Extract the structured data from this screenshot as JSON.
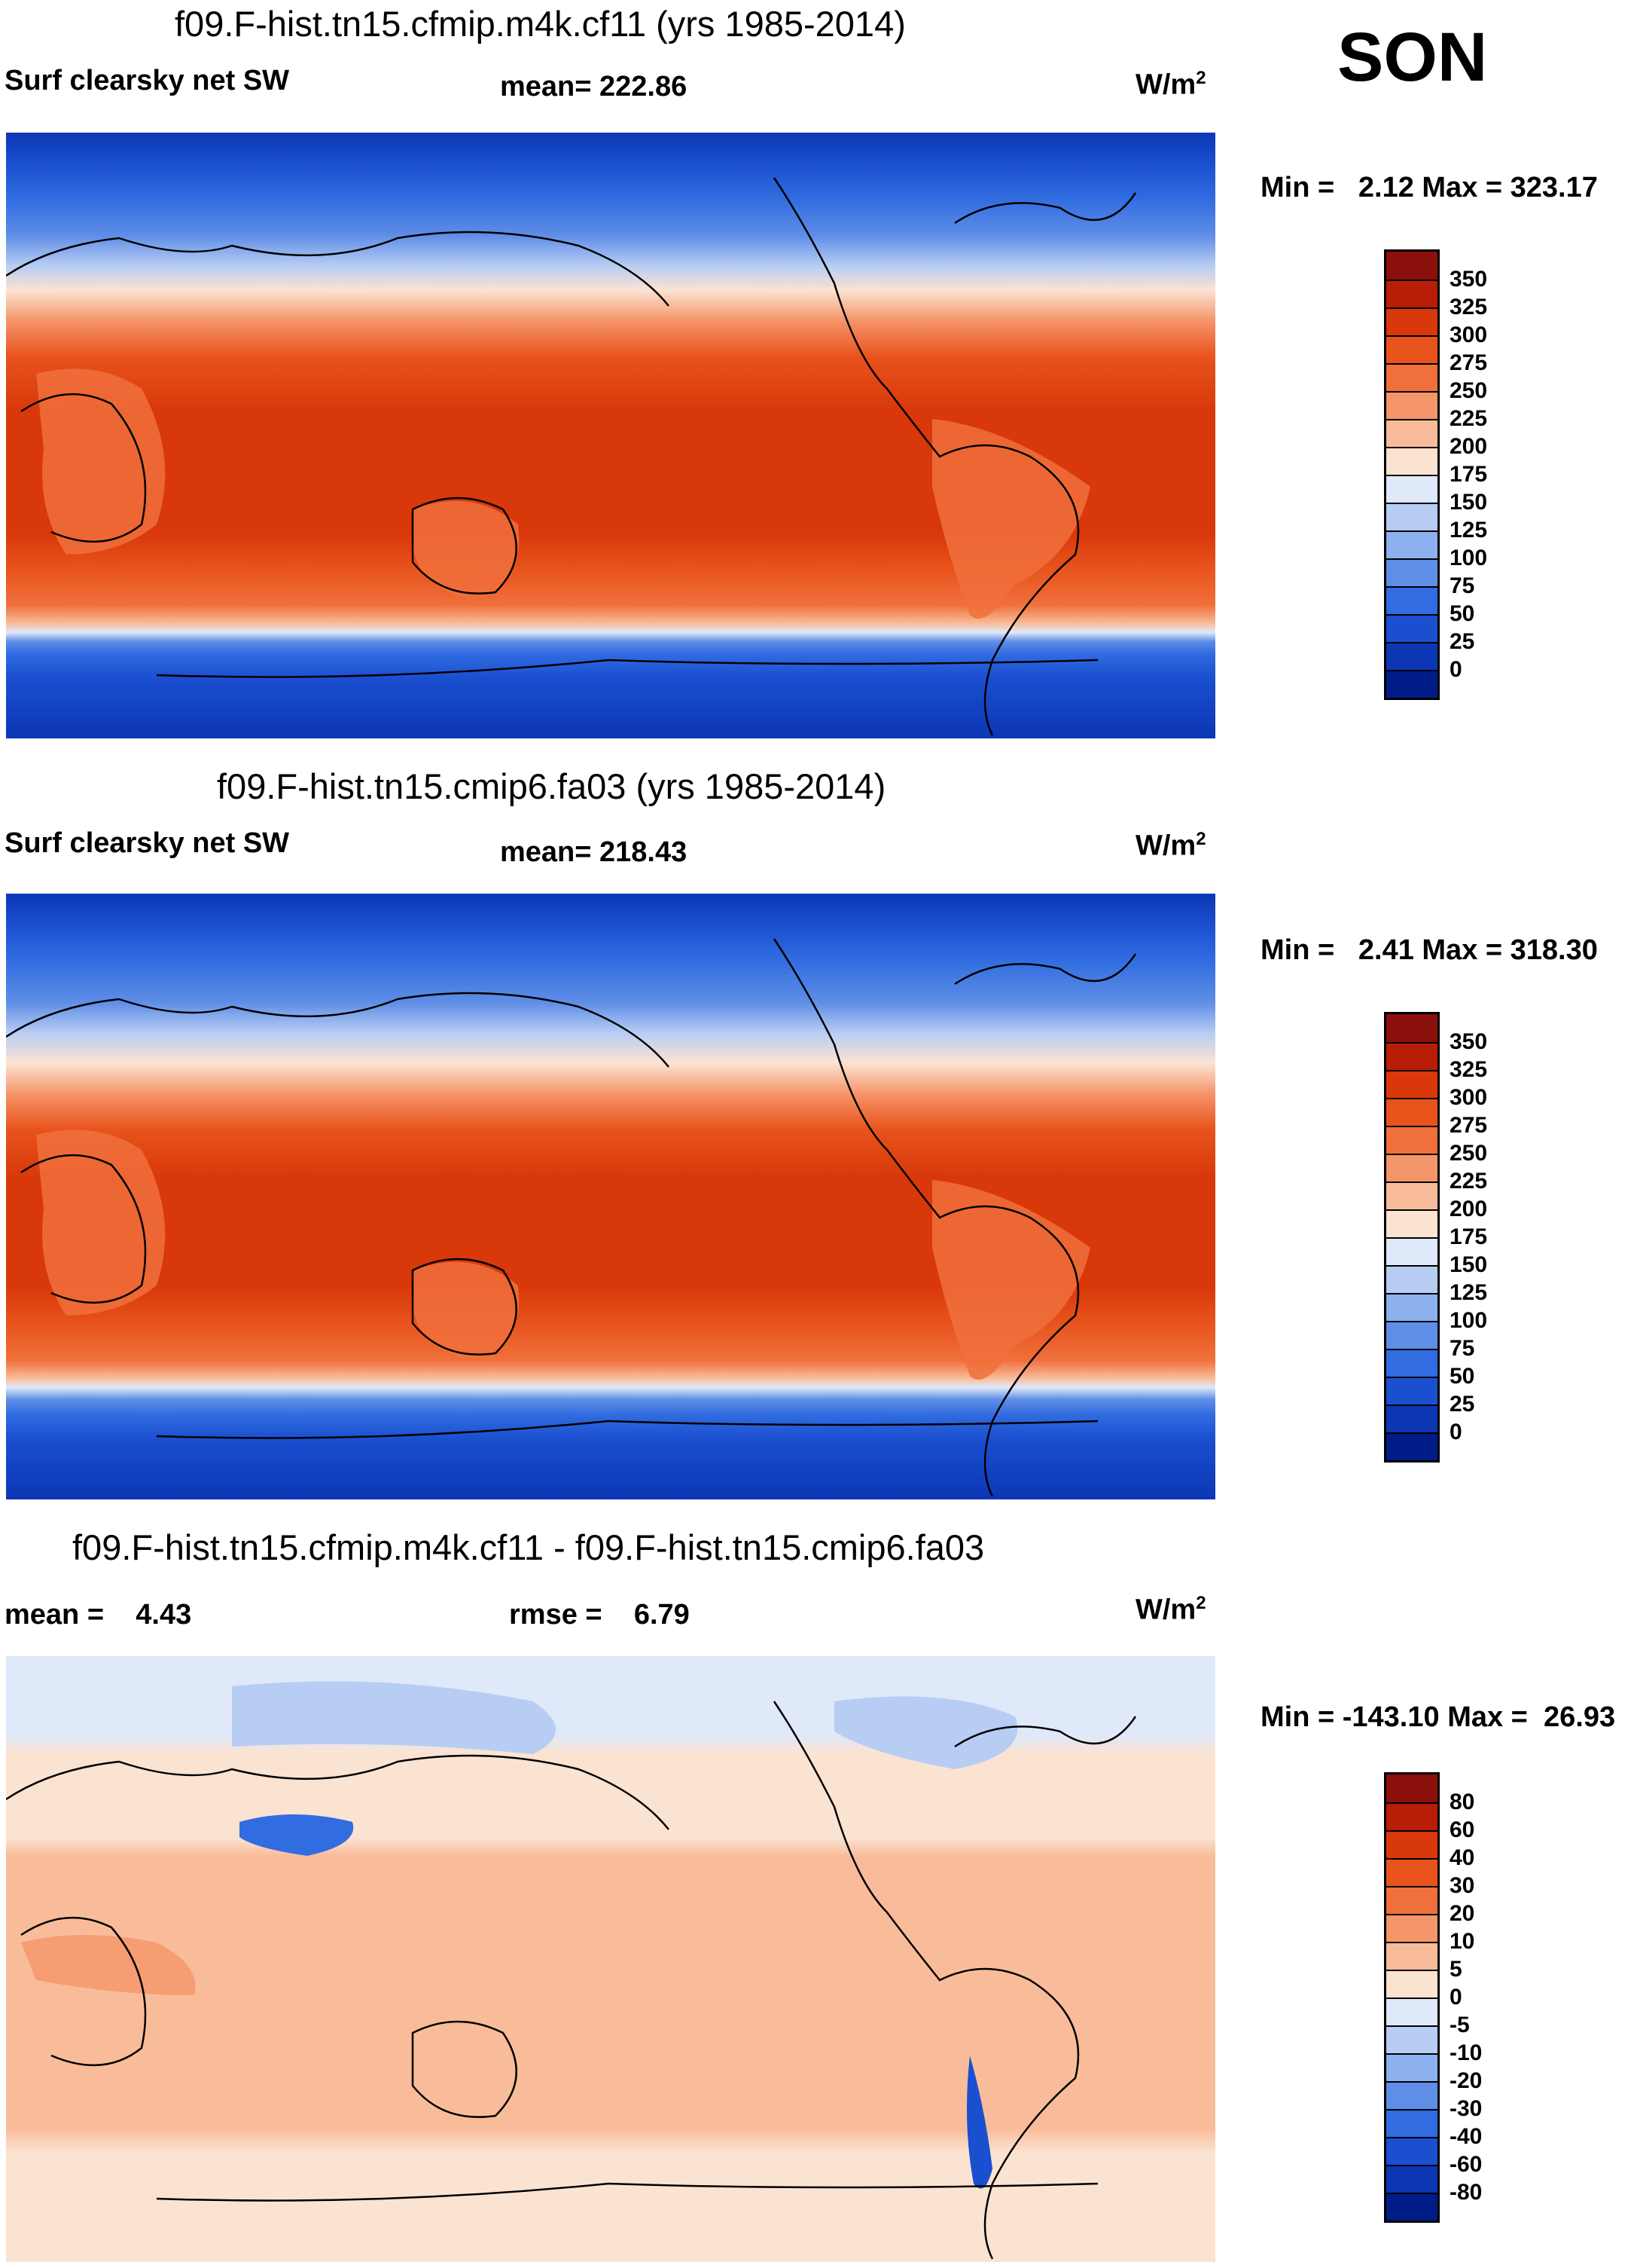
{
  "season": "SON",
  "panels": [
    {
      "title": "f09.F-hist.tn15.cfmip.m4k.cf11 (yrs 1985-2014)",
      "variable": "Surf clearsky net SW",
      "stat1_label": "mean=",
      "stat1_value": "222.86",
      "units": "W/m",
      "units_sup": "2",
      "minmax_label_min": "Min =",
      "min": "2.12",
      "minmax_label_max": "Max =",
      "max": "323.17"
    },
    {
      "title": "f09.F-hist.tn15.cmip6.fa03 (yrs 1985-2014)",
      "variable": "Surf clearsky net SW",
      "stat1_label": "mean=",
      "stat1_value": "218.43",
      "units": "W/m",
      "units_sup": "2",
      "minmax_label_min": "Min =",
      "min": "2.41",
      "minmax_label_max": "Max =",
      "max": "318.30"
    },
    {
      "title": "f09.F-hist.tn15.cfmip.m4k.cf11 - f09.F-hist.tn15.cmip6.fa03",
      "stat1_label": "mean =",
      "stat1_value": "4.43",
      "stat2_label": "rmse =",
      "stat2_value": "6.79",
      "units": "W/m",
      "units_sup": "2",
      "minmax_label_min": "Min =",
      "min": "-143.10",
      "minmax_label_max": "Max =",
      "max": "26.93"
    }
  ],
  "colorbars": {
    "abs_labels": [
      "350",
      "325",
      "300",
      "275",
      "250",
      "225",
      "200",
      "175",
      "150",
      "125",
      "100",
      "75",
      "50",
      "25",
      "0"
    ],
    "abs_colors": [
      "#8b0f0a",
      "#b81e06",
      "#d8380a",
      "#e8531c",
      "#f0703c",
      "#f5956a",
      "#f9bc9a",
      "#fbe3d2",
      "#dfe9fa",
      "#b7cdf4",
      "#8db0ee",
      "#5f8ee6",
      "#316ce0",
      "#1a4fd0",
      "#0c36b4",
      "#001c86"
    ],
    "diff_labels": [
      "80",
      "60",
      "40",
      "30",
      "20",
      "10",
      "5",
      "0",
      "-5",
      "-10",
      "-20",
      "-30",
      "-40",
      "-60",
      "-80"
    ],
    "diff_colors": [
      "#8b0f0a",
      "#b81e06",
      "#d8380a",
      "#e8531c",
      "#f0703c",
      "#f5956a",
      "#f9bc9a",
      "#fbe3d2",
      "#dfe9fa",
      "#b7cdf4",
      "#8db0ee",
      "#5f8ee6",
      "#316ce0",
      "#1a4fd0",
      "#0c36b4",
      "#001c86"
    ]
  }
}
